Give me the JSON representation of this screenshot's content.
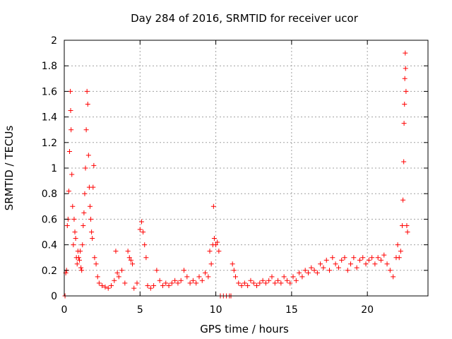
{
  "chart_data": {
    "type": "scatter",
    "title": "Day 284 of 2016, SRMTID for receiver ucor",
    "xlabel": "GPS time / hours",
    "ylabel": "SRMTID / TECUs",
    "xlim": [
      0,
      24
    ],
    "ylim": [
      0,
      2
    ],
    "xticks": [
      "0",
      "5",
      "10",
      "15",
      "20"
    ],
    "xtick_values": [
      0,
      5,
      10,
      15,
      20
    ],
    "yticks": [
      "0",
      "0.2",
      "0.4",
      "0.6",
      "0.8",
      "1",
      "1.2",
      "1.4",
      "1.6",
      "1.8",
      "2"
    ],
    "ytick_values": [
      0,
      0.2,
      0.4,
      0.6,
      0.8,
      1.0,
      1.2,
      1.4,
      1.6,
      1.8,
      2.0
    ],
    "grid": true,
    "marker": "plus",
    "color": "#ff0000",
    "series": [
      {
        "points": [
          [
            0.05,
            0.0
          ],
          [
            0.1,
            0.18
          ],
          [
            0.15,
            0.2
          ],
          [
            0.2,
            0.55
          ],
          [
            0.25,
            0.6
          ],
          [
            0.3,
            0.82
          ],
          [
            0.35,
            1.13
          ],
          [
            0.4,
            1.6
          ],
          [
            0.42,
            1.45
          ],
          [
            0.45,
            1.3
          ],
          [
            0.5,
            0.95
          ],
          [
            0.55,
            0.7
          ],
          [
            0.6,
            0.4
          ],
          [
            0.65,
            0.6
          ],
          [
            0.7,
            0.5
          ],
          [
            0.75,
            0.45
          ],
          [
            0.8,
            0.3
          ],
          [
            0.85,
            0.25
          ],
          [
            0.9,
            0.35
          ],
          [
            0.95,
            0.3
          ],
          [
            1.0,
            0.28
          ],
          [
            1.05,
            0.35
          ],
          [
            1.1,
            0.22
          ],
          [
            1.15,
            0.2
          ],
          [
            1.2,
            0.4
          ],
          [
            1.25,
            0.55
          ],
          [
            1.3,
            0.65
          ],
          [
            1.35,
            0.8
          ],
          [
            1.4,
            1.0
          ],
          [
            1.45,
            1.3
          ],
          [
            1.5,
            1.6
          ],
          [
            1.55,
            1.5
          ],
          [
            1.6,
            1.1
          ],
          [
            1.65,
            0.85
          ],
          [
            1.7,
            0.7
          ],
          [
            1.75,
            0.6
          ],
          [
            1.8,
            0.5
          ],
          [
            1.85,
            0.45
          ],
          [
            1.9,
            0.85
          ],
          [
            1.95,
            1.02
          ],
          [
            2.0,
            0.3
          ],
          [
            2.1,
            0.25
          ],
          [
            2.2,
            0.15
          ],
          [
            2.3,
            0.1
          ],
          [
            2.5,
            0.08
          ],
          [
            2.7,
            0.07
          ],
          [
            2.9,
            0.06
          ],
          [
            3.1,
            0.08
          ],
          [
            3.3,
            0.12
          ],
          [
            3.4,
            0.35
          ],
          [
            3.5,
            0.18
          ],
          [
            3.6,
            0.15
          ],
          [
            3.8,
            0.2
          ],
          [
            4.0,
            0.1
          ],
          [
            4.2,
            0.35
          ],
          [
            4.3,
            0.3
          ],
          [
            4.4,
            0.28
          ],
          [
            4.5,
            0.25
          ],
          [
            4.6,
            0.06
          ],
          [
            4.8,
            0.1
          ],
          [
            5.0,
            0.52
          ],
          [
            5.1,
            0.58
          ],
          [
            5.2,
            0.5
          ],
          [
            5.3,
            0.4
          ],
          [
            5.4,
            0.3
          ],
          [
            5.5,
            0.08
          ],
          [
            5.7,
            0.06
          ],
          [
            5.9,
            0.08
          ],
          [
            6.1,
            0.2
          ],
          [
            6.3,
            0.12
          ],
          [
            6.5,
            0.08
          ],
          [
            6.7,
            0.1
          ],
          [
            6.9,
            0.08
          ],
          [
            7.1,
            0.1
          ],
          [
            7.3,
            0.12
          ],
          [
            7.5,
            0.1
          ],
          [
            7.7,
            0.12
          ],
          [
            7.9,
            0.2
          ],
          [
            8.1,
            0.15
          ],
          [
            8.3,
            0.1
          ],
          [
            8.5,
            0.12
          ],
          [
            8.7,
            0.1
          ],
          [
            8.9,
            0.15
          ],
          [
            9.1,
            0.12
          ],
          [
            9.3,
            0.18
          ],
          [
            9.5,
            0.15
          ],
          [
            9.6,
            0.35
          ],
          [
            9.7,
            0.25
          ],
          [
            9.8,
            0.4
          ],
          [
            9.85,
            0.7
          ],
          [
            9.9,
            0.45
          ],
          [
            10.0,
            0.4
          ],
          [
            10.1,
            0.42
          ],
          [
            10.2,
            0.35
          ],
          [
            10.3,
            0.0
          ],
          [
            10.5,
            0.0
          ],
          [
            10.7,
            0.0
          ],
          [
            10.9,
            0.0
          ],
          [
            11.0,
            0.0
          ],
          [
            11.1,
            0.25
          ],
          [
            11.2,
            0.2
          ],
          [
            11.3,
            0.15
          ],
          [
            11.5,
            0.1
          ],
          [
            11.7,
            0.08
          ],
          [
            11.9,
            0.1
          ],
          [
            12.1,
            0.08
          ],
          [
            12.3,
            0.12
          ],
          [
            12.5,
            0.1
          ],
          [
            12.7,
            0.08
          ],
          [
            12.9,
            0.1
          ],
          [
            13.1,
            0.12
          ],
          [
            13.3,
            0.1
          ],
          [
            13.5,
            0.12
          ],
          [
            13.7,
            0.15
          ],
          [
            13.9,
            0.1
          ],
          [
            14.1,
            0.12
          ],
          [
            14.3,
            0.1
          ],
          [
            14.5,
            0.15
          ],
          [
            14.7,
            0.12
          ],
          [
            14.9,
            0.1
          ],
          [
            15.1,
            0.15
          ],
          [
            15.3,
            0.12
          ],
          [
            15.5,
            0.18
          ],
          [
            15.7,
            0.15
          ],
          [
            15.9,
            0.2
          ],
          [
            16.1,
            0.18
          ],
          [
            16.3,
            0.22
          ],
          [
            16.5,
            0.2
          ],
          [
            16.7,
            0.18
          ],
          [
            16.9,
            0.25
          ],
          [
            17.1,
            0.22
          ],
          [
            17.3,
            0.28
          ],
          [
            17.5,
            0.2
          ],
          [
            17.7,
            0.3
          ],
          [
            17.9,
            0.25
          ],
          [
            18.1,
            0.22
          ],
          [
            18.3,
            0.28
          ],
          [
            18.5,
            0.3
          ],
          [
            18.7,
            0.2
          ],
          [
            18.9,
            0.25
          ],
          [
            19.1,
            0.3
          ],
          [
            19.3,
            0.22
          ],
          [
            19.5,
            0.28
          ],
          [
            19.7,
            0.3
          ],
          [
            19.9,
            0.25
          ],
          [
            20.1,
            0.28
          ],
          [
            20.3,
            0.3
          ],
          [
            20.5,
            0.25
          ],
          [
            20.7,
            0.3
          ],
          [
            20.9,
            0.28
          ],
          [
            21.1,
            0.32
          ],
          [
            21.3,
            0.25
          ],
          [
            21.5,
            0.2
          ],
          [
            21.7,
            0.15
          ],
          [
            21.9,
            0.3
          ],
          [
            22.0,
            0.4
          ],
          [
            22.1,
            0.3
          ],
          [
            22.2,
            0.35
          ],
          [
            22.3,
            0.55
          ],
          [
            22.35,
            0.75
          ],
          [
            22.4,
            1.05
          ],
          [
            22.42,
            1.35
          ],
          [
            22.45,
            1.5
          ],
          [
            22.47,
            1.7
          ],
          [
            22.5,
            1.9
          ],
          [
            22.52,
            1.78
          ],
          [
            22.55,
            1.6
          ],
          [
            22.6,
            0.55
          ],
          [
            22.65,
            0.5
          ]
        ]
      }
    ]
  }
}
